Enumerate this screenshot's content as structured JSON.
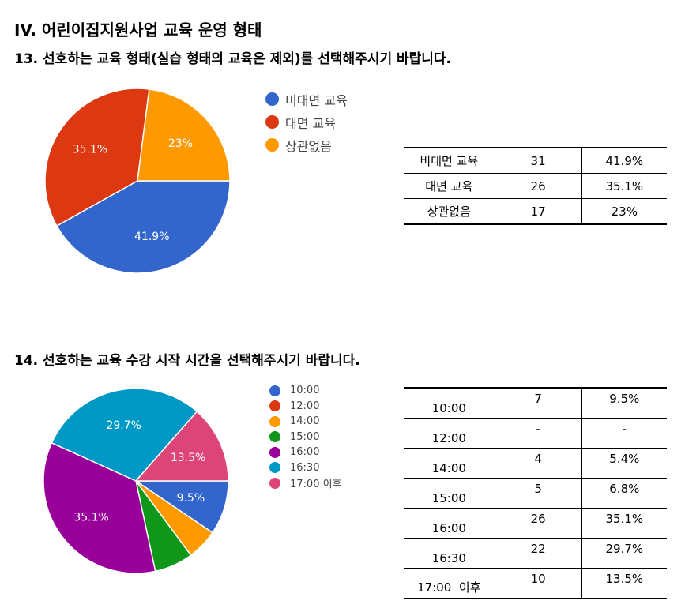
{
  "main_title": "IV. 어린이집지원사업 교육 운영 형태",
  "q13_title": "13. 선호하는 교육 형태(실습 형태의 교육은 제외)를 선택해주시기 바랍니다.",
  "q14_title": "14. 선호하는 교육 수강 시작 시간을 선택해주시기 바랍니다.",
  "chart_data": [
    {
      "type": "pie",
      "title": "",
      "categories": [
        "비대면 교육",
        "대면 교육",
        "상관없음"
      ],
      "values": [
        31,
        26,
        17
      ],
      "slice_labels": [
        "41.9%",
        "35.1%",
        "23%"
      ],
      "colors": [
        "#3366cc",
        "#dc3912",
        "#ff9900"
      ],
      "legend": "right",
      "table": {
        "rows": [
          {
            "label": "비대면 교육",
            "count": "31",
            "percent": "41.9%"
          },
          {
            "label": "대면 교육",
            "count": "26",
            "percent": "35.1%"
          },
          {
            "label": "상관없음",
            "count": "17",
            "percent": "23%"
          }
        ]
      }
    },
    {
      "type": "pie",
      "title": "",
      "categories": [
        "10:00",
        "12:00",
        "14:00",
        "15:00",
        "16:00",
        "16:30",
        "17:00 이후"
      ],
      "values": [
        7,
        0,
        4,
        5,
        26,
        22,
        10
      ],
      "slice_labels": [
        "9.5%",
        "",
        "",
        "",
        "35.1%",
        "29.7%",
        "13.5%"
      ],
      "colors": [
        "#3366cc",
        "#dc3912",
        "#ff9900",
        "#109618",
        "#990099",
        "#0099c6",
        "#dd4477"
      ],
      "legend": "right",
      "table": {
        "rows": [
          {
            "label": "10:00",
            "count": "7",
            "percent": "9.5%"
          },
          {
            "label": "12:00",
            "count": "-",
            "percent": "-"
          },
          {
            "label": "14:00",
            "count": "4",
            "percent": "5.4%"
          },
          {
            "label": "15:00",
            "count": "5",
            "percent": "6.8%"
          },
          {
            "label": "16:00",
            "count": "26",
            "percent": "35.1%"
          },
          {
            "label": "16:30",
            "count": "22",
            "percent": "29.7%"
          },
          {
            "label": "17:00  이후",
            "count": "10",
            "percent": "13.5%"
          }
        ]
      }
    }
  ]
}
